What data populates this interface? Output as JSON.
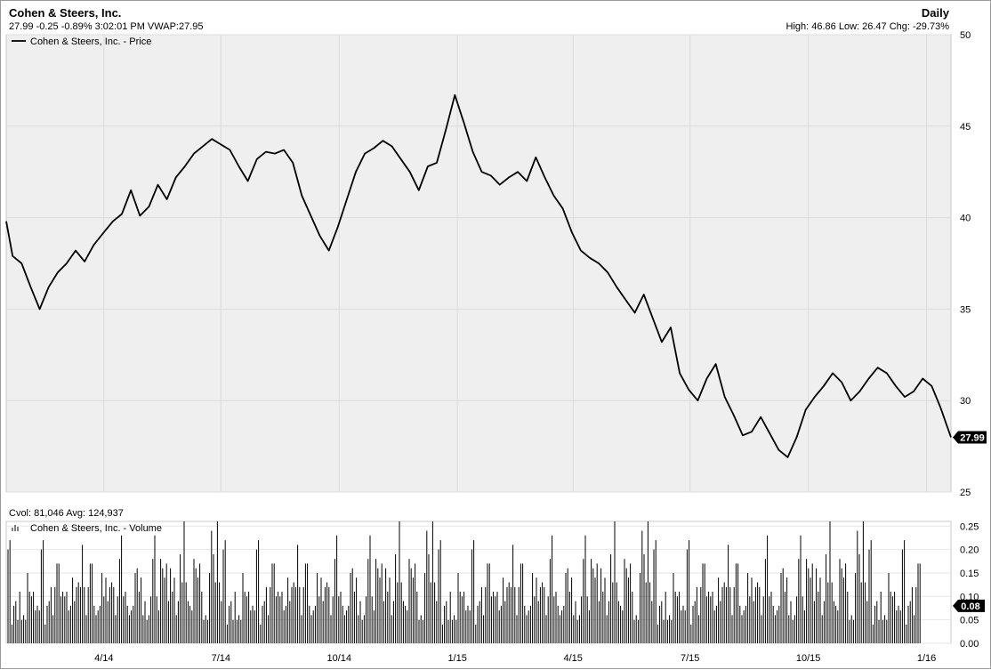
{
  "header": {
    "title": "Cohen & Steers, Inc.",
    "interval": "Daily",
    "quote_line": "27.99 -0.25 -0.89% 3:02:01 PM VWAP:27.95",
    "range_line": "High: 46.86 Low: 26.47 Chg: -29.73%"
  },
  "volume_header": {
    "cvol_line": "Cvol: 81,046 Avg: 124,937"
  },
  "colors": {
    "plot_bg": "#efefef",
    "grid": "#dcdcdc",
    "line": "#000000",
    "badge": "#000000"
  },
  "chart_data": [
    {
      "type": "line",
      "title": "",
      "xlabel": "",
      "ylabel": "",
      "legend": "top-left",
      "grid": true,
      "ylim": [
        25,
        50
      ],
      "y_ticks": [
        "25",
        "30",
        "35",
        "40",
        "45",
        "50"
      ],
      "x_ticks": [
        "4/14",
        "7/14",
        "10/14",
        "1/15",
        "4/15",
        "7/15",
        "10/15",
        "1/16"
      ],
      "x_tick_dates": [
        "2014-04-01",
        "2014-07-01",
        "2014-10-01",
        "2015-01-01",
        "2015-04-01",
        "2015-07-01",
        "2015-10-01",
        "2016-01-01"
      ],
      "xlim": [
        "2014-01-15",
        "2016-01-20"
      ],
      "last_value_label": "27.99",
      "series": [
        {
          "name": "Cohen & Steers, Inc. - Price",
          "x": [
            "2014-01-15",
            "2014-01-20",
            "2014-01-27",
            "2014-02-03",
            "2014-02-10",
            "2014-02-17",
            "2014-02-24",
            "2014-03-03",
            "2014-03-10",
            "2014-03-17",
            "2014-03-24",
            "2014-04-01",
            "2014-04-08",
            "2014-04-15",
            "2014-04-22",
            "2014-04-29",
            "2014-05-06",
            "2014-05-13",
            "2014-05-20",
            "2014-05-27",
            "2014-06-03",
            "2014-06-10",
            "2014-06-17",
            "2014-06-24",
            "2014-07-01",
            "2014-07-08",
            "2014-07-15",
            "2014-07-22",
            "2014-07-29",
            "2014-08-05",
            "2014-08-12",
            "2014-08-19",
            "2014-08-26",
            "2014-09-02",
            "2014-09-09",
            "2014-09-16",
            "2014-09-23",
            "2014-09-30",
            "2014-10-07",
            "2014-10-14",
            "2014-10-21",
            "2014-10-28",
            "2014-11-04",
            "2014-11-11",
            "2014-11-18",
            "2014-11-25",
            "2014-12-02",
            "2014-12-09",
            "2014-12-16",
            "2014-12-23",
            "2014-12-30",
            "2015-01-06",
            "2015-01-13",
            "2015-01-20",
            "2015-01-27",
            "2015-02-03",
            "2015-02-10",
            "2015-02-17",
            "2015-02-24",
            "2015-03-03",
            "2015-03-10",
            "2015-03-17",
            "2015-03-24",
            "2015-03-31",
            "2015-04-07",
            "2015-04-14",
            "2015-04-21",
            "2015-04-28",
            "2015-05-05",
            "2015-05-12",
            "2015-05-19",
            "2015-05-26",
            "2015-06-02",
            "2015-06-09",
            "2015-06-16",
            "2015-06-23",
            "2015-06-30",
            "2015-07-07",
            "2015-07-14",
            "2015-07-21",
            "2015-07-28",
            "2015-08-04",
            "2015-08-11",
            "2015-08-18",
            "2015-08-25",
            "2015-09-01",
            "2015-09-08",
            "2015-09-15",
            "2015-09-22",
            "2015-09-29",
            "2015-10-06",
            "2015-10-13",
            "2015-10-20",
            "2015-10-27",
            "2015-11-03",
            "2015-11-10",
            "2015-11-17",
            "2015-11-24",
            "2015-12-01",
            "2015-12-08",
            "2015-12-15",
            "2015-12-22",
            "2015-12-29",
            "2016-01-05",
            "2016-01-12",
            "2016-01-20"
          ],
          "y": [
            39.8,
            37.9,
            37.5,
            36.2,
            35.0,
            36.2,
            37.0,
            37.5,
            38.2,
            37.6,
            38.5,
            39.2,
            39.8,
            40.2,
            41.5,
            40.1,
            40.6,
            41.8,
            41.0,
            42.2,
            42.8,
            43.5,
            43.9,
            44.3,
            44.0,
            43.7,
            42.8,
            42.0,
            43.2,
            43.6,
            43.5,
            43.7,
            43.0,
            41.2,
            40.1,
            39.0,
            38.2,
            39.5,
            41.0,
            42.5,
            43.5,
            43.8,
            44.2,
            43.9,
            43.2,
            42.5,
            41.5,
            42.8,
            43.0,
            44.8,
            46.7,
            45.2,
            43.6,
            42.5,
            42.3,
            41.8,
            42.2,
            42.5,
            42.0,
            43.3,
            42.2,
            41.2,
            40.5,
            39.2,
            38.2,
            37.8,
            37.5,
            37.0,
            36.2,
            35.5,
            34.8,
            35.8,
            34.5,
            33.2,
            34.0,
            31.5,
            30.6,
            30.0,
            31.2,
            32.0,
            30.2,
            29.2,
            28.1,
            28.3,
            29.1,
            28.2,
            27.3,
            26.9,
            28.0,
            29.5,
            30.2,
            30.8,
            31.5,
            31.0,
            30.0,
            30.5,
            31.2,
            31.8,
            31.5,
            30.8,
            30.2,
            30.5,
            31.2,
            30.8,
            29.6,
            27.99
          ]
        }
      ]
    },
    {
      "type": "bar",
      "title": "",
      "legend": "top-left",
      "grid": true,
      "ylim": [
        0,
        0.26
      ],
      "y_ticks": [
        "0.00",
        "0.05",
        "0.10",
        "0.15",
        "0.20",
        "0.25"
      ],
      "last_value_label": "0.08",
      "series": [
        {
          "name": "Cohen & Steers, Inc. - Volume",
          "pattern_values": [
            0.2,
            0.09,
            0.14,
            0.05,
            0.17,
            0.11,
            0.07,
            0.22,
            0.12,
            0.06,
            0.15,
            0.1,
            0.08,
            0.18,
            0.04,
            0.13,
            0.09,
            0.24,
            0.11,
            0.06,
            0.16,
            0.08,
            0.12,
            0.05,
            0.19,
            0.1,
            0.07,
            0.14,
            0.09,
            0.21,
            0.06,
            0.13,
            0.11,
            0.08,
            0.17,
            0.05,
            0.12,
            0.1,
            0.26,
            0.07,
            0.15,
            0.09,
            0.11,
            0.06,
            0.18,
            0.13,
            0.08,
            0.1,
            0.16,
            0.05,
            0.12,
            0.23,
            0.09,
            0.07,
            0.14,
            0.11,
            0.06,
            0.17,
            0.1,
            0.08
          ]
        }
      ]
    }
  ],
  "icons": {
    "legend_line": "legend-line-icon",
    "volume_legend": "volume-bars-icon"
  }
}
